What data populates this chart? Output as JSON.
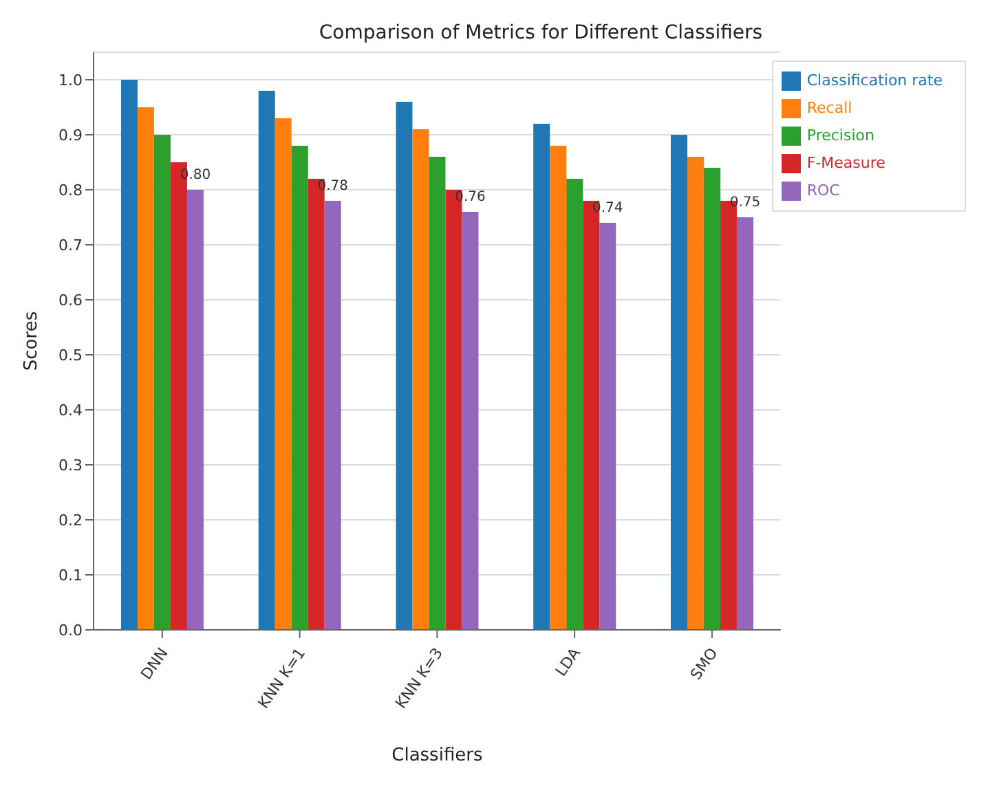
{
  "chart_data": {
    "type": "bar",
    "title": "Comparison of Metrics for Different Classifiers",
    "xlabel": "Classifiers",
    "ylabel": "Scores",
    "categories": [
      "DNN",
      "KNN K=1",
      "KNN K=3",
      "LDA",
      "SMO"
    ],
    "series": [
      {
        "name": "Classification rate",
        "color": "#1f77b4",
        "values": [
          1.0,
          0.98,
          0.96,
          0.92,
          0.9
        ]
      },
      {
        "name": "Recall",
        "color": "#ff7f0e",
        "values": [
          0.95,
          0.93,
          0.91,
          0.88,
          0.86
        ]
      },
      {
        "name": "Precision",
        "color": "#2ca02c",
        "values": [
          0.9,
          0.88,
          0.86,
          0.82,
          0.84
        ]
      },
      {
        "name": "F-Measure",
        "color": "#d62728",
        "values": [
          0.85,
          0.82,
          0.8,
          0.78,
          0.78
        ]
      },
      {
        "name": "ROC",
        "color": "#9467bd",
        "values": [
          0.8,
          0.78,
          0.76,
          0.74,
          0.75
        ],
        "value_labels": [
          "0.80",
          "0.78",
          "0.76",
          "0.74",
          "0.75"
        ]
      }
    ],
    "ylim": [
      0,
      1.05
    ],
    "yticks": [
      {
        "value": 0,
        "label": "0.0"
      },
      {
        "value": 0.1,
        "label": "0.1"
      },
      {
        "value": 0.2,
        "label": "0.2"
      },
      {
        "value": 0.3,
        "label": "0.3"
      },
      {
        "value": 0.4,
        "label": "0.4"
      },
      {
        "value": 0.5,
        "label": "0.5"
      },
      {
        "value": 0.6,
        "label": "0.6"
      },
      {
        "value": 0.7,
        "label": "0.7"
      },
      {
        "value": 0.8,
        "label": "0.8"
      },
      {
        "value": 0.9,
        "label": "0.9"
      },
      {
        "value": 1.0,
        "label": "1.0"
      }
    ],
    "grid": "y",
    "legend": "top right"
  }
}
